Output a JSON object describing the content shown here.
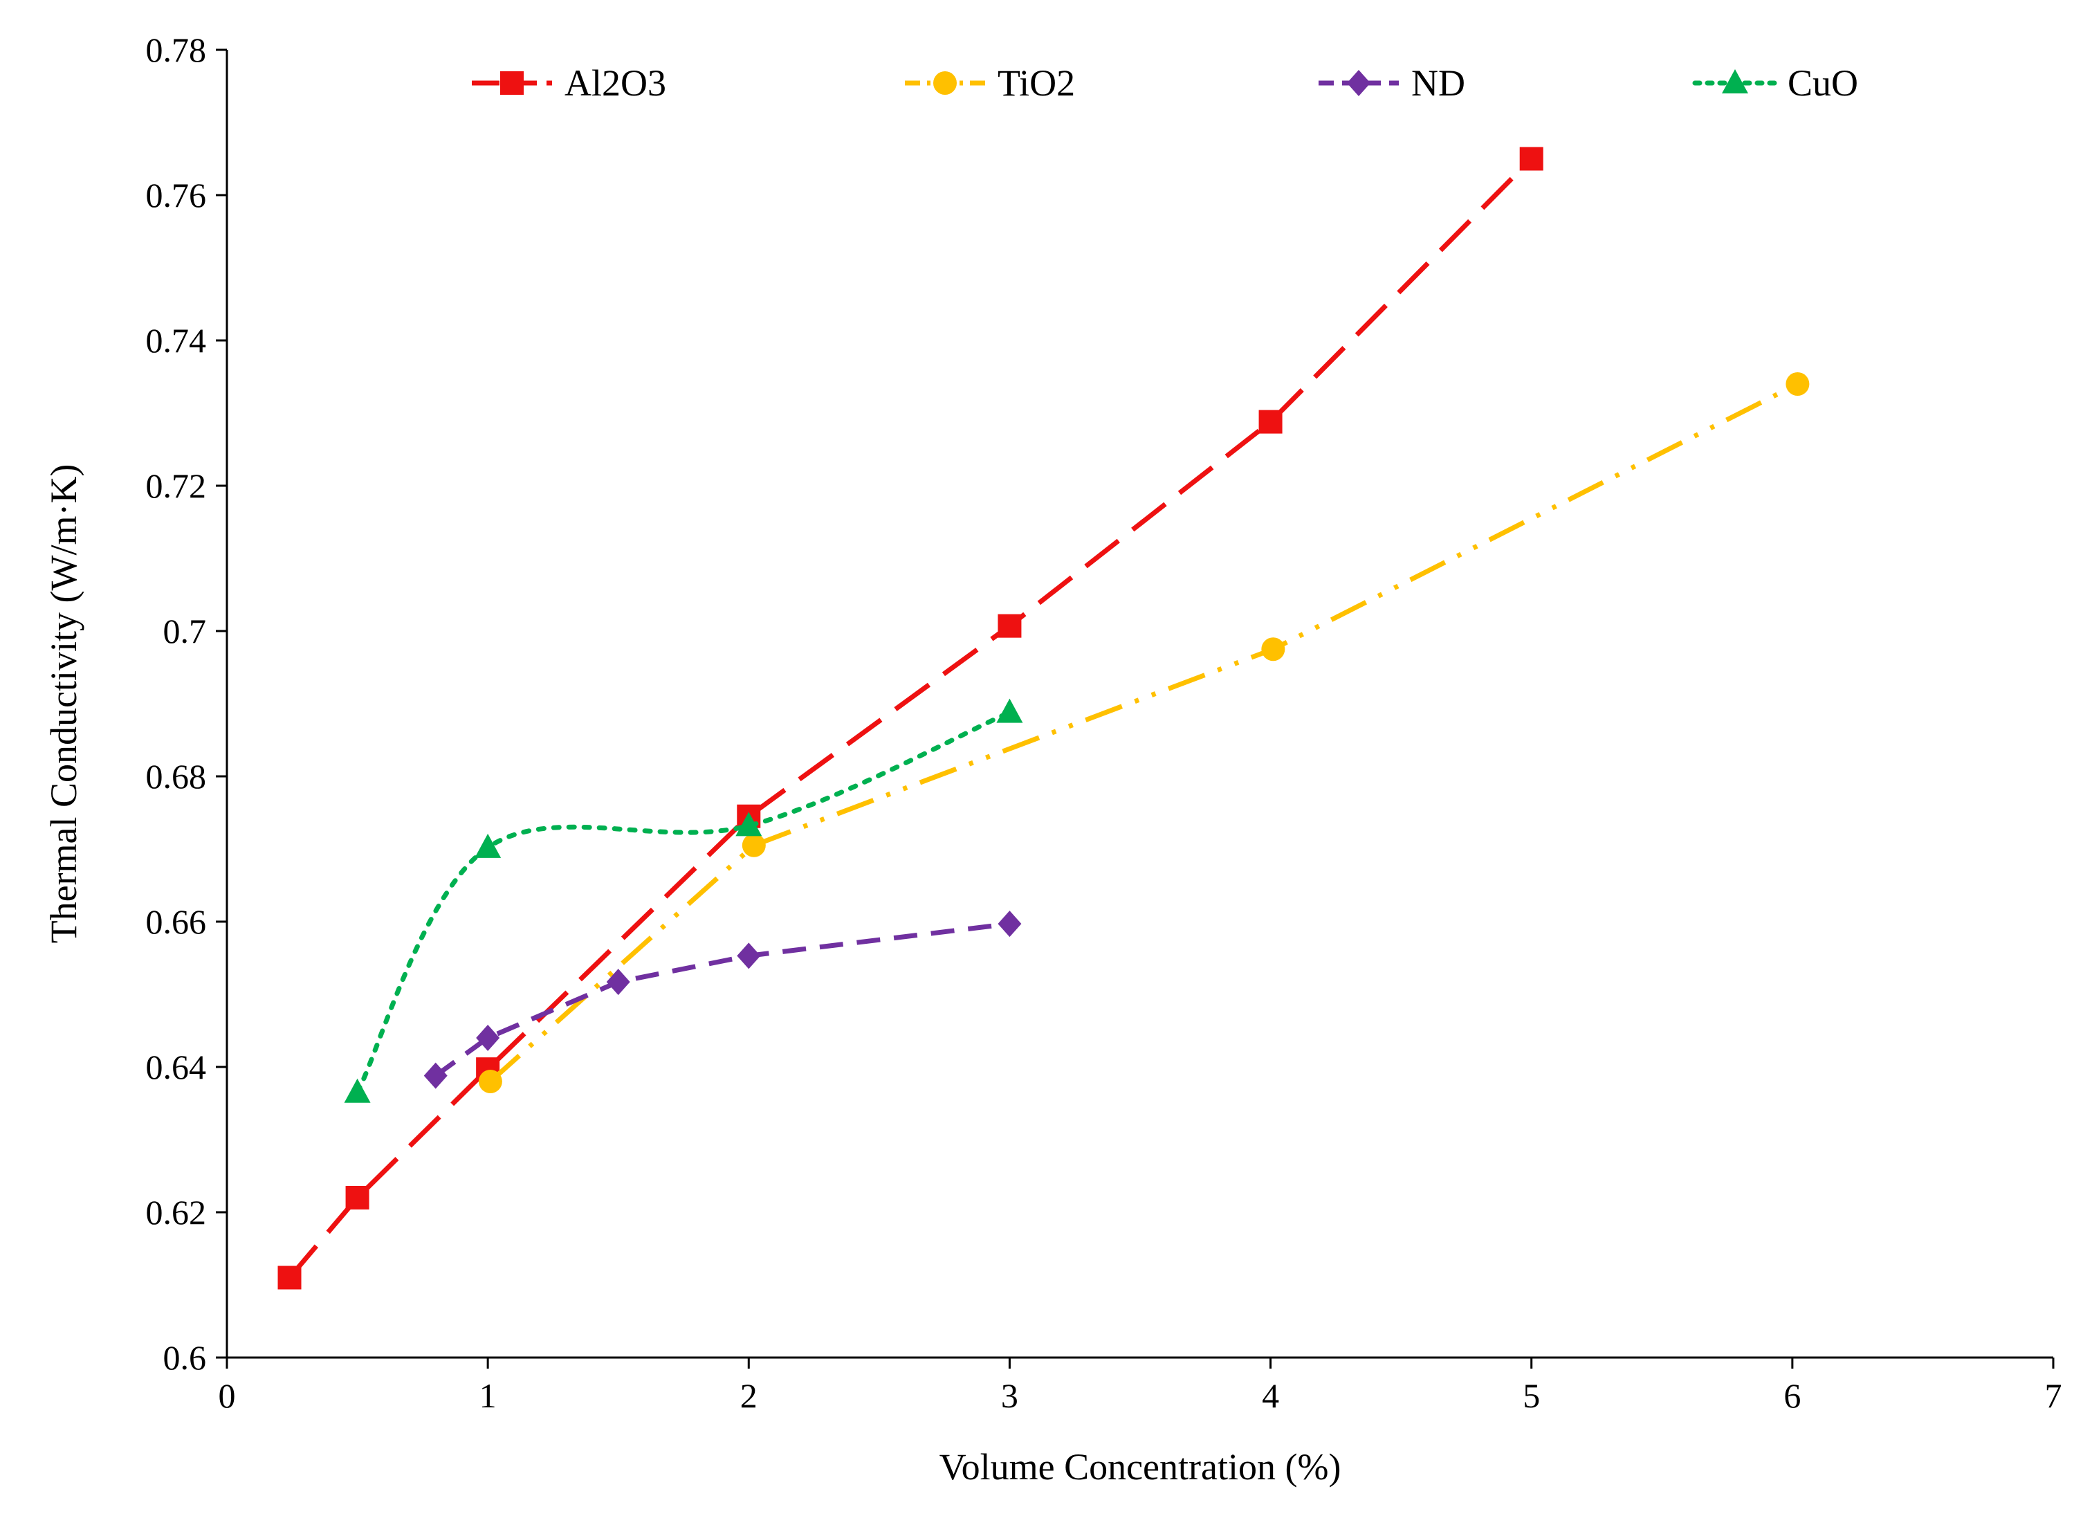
{
  "chart_data": {
    "type": "line",
    "title": "",
    "xlabel": "Volume Concentration (%)",
    "ylabel": "Thermal Conductivity (W/m·K)",
    "xlim": [
      0,
      7
    ],
    "ylim": [
      0.6,
      0.78
    ],
    "x_ticks": [
      0,
      1,
      2,
      3,
      4,
      5,
      6,
      7
    ],
    "x_tick_labels": [
      "0",
      "1",
      "2",
      "3",
      "4",
      "5",
      "6",
      "7"
    ],
    "y_ticks": [
      0.6,
      0.62,
      0.64,
      0.66,
      0.68,
      0.7,
      0.72,
      0.74,
      0.76,
      0.78
    ],
    "y_tick_labels": [
      "0.6",
      "0.62",
      "0.64",
      "0.66",
      "0.68",
      "0.7",
      "0.72",
      "0.74",
      "0.76",
      "0.78"
    ],
    "grid": false,
    "legend_position": "top",
    "series": [
      {
        "name": "Al2O3",
        "color": "#ee1111",
        "marker": "square",
        "line_style": "long-dash",
        "smooth": false,
        "x": [
          0.24,
          0.5,
          1.0,
          2.0,
          3.0,
          4.0,
          5.0
        ],
        "values": [
          0.611,
          0.622,
          0.6397,
          0.6745,
          0.7007,
          0.7288,
          0.765
        ]
      },
      {
        "name": "TiO2",
        "color": "#ffc000",
        "marker": "circle",
        "line_style": "long-dash-dot-dot",
        "smooth": false,
        "x": [
          1.01,
          2.02,
          4.01,
          6.02
        ],
        "values": [
          0.638,
          0.6705,
          0.6975,
          0.734
        ]
      },
      {
        "name": "ND",
        "color": "#7030a0",
        "marker": "diamond",
        "line_style": "dash",
        "smooth": false,
        "x": [
          0.8,
          1.0,
          1.5,
          2.0,
          3.0
        ],
        "values": [
          0.6388,
          0.644,
          0.6517,
          0.6553,
          0.6597
        ]
      },
      {
        "name": "CuO",
        "color": "#00b050",
        "marker": "triangle",
        "line_style": "dot",
        "smooth": true,
        "x": [
          0.5,
          1.0,
          2.0,
          3.0
        ],
        "values": [
          0.6365,
          0.6702,
          0.6732,
          0.6888
        ]
      }
    ]
  }
}
